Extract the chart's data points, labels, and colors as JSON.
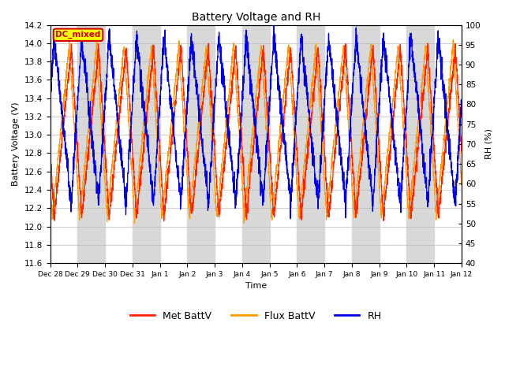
{
  "title": "Battery Voltage and RH",
  "xlabel": "Time",
  "ylabel_left": "Battery Voltage (V)",
  "ylabel_right": "RH (%)",
  "ylim_left": [
    11.6,
    14.2
  ],
  "ylim_right": [
    40,
    100
  ],
  "yticks_left": [
    11.6,
    11.8,
    12.0,
    12.2,
    12.4,
    12.6,
    12.8,
    13.0,
    13.2,
    13.4,
    13.6,
    13.8,
    14.0,
    14.2
  ],
  "yticks_right": [
    40,
    45,
    50,
    55,
    60,
    65,
    70,
    75,
    80,
    85,
    90,
    95,
    100
  ],
  "xtick_labels": [
    "Dec 28",
    "Dec 29",
    "Dec 30",
    "Dec 31",
    "Jan 1",
    "Jan 2",
    "Jan 3",
    "Jan 4",
    "Jan 5",
    "Jan 6",
    "Jan 7",
    "Jan 8",
    "Jan 9",
    "Jan 10",
    "Jan 11",
    "Jan 12"
  ],
  "annotation_text": "DC_mixed",
  "annotation_color": "#cc0000",
  "annotation_bg": "#ffff00",
  "annotation_border": "#cc0000",
  "color_met": "#ff2200",
  "color_flux": "#ff9900",
  "color_rh": "#0000ee",
  "legend_labels": [
    "Met BattV",
    "Flux BattV",
    "RH"
  ],
  "bg_stripe_color": "#d8d8d8",
  "fig_bg": "#ffffff",
  "stripe_odd": true
}
